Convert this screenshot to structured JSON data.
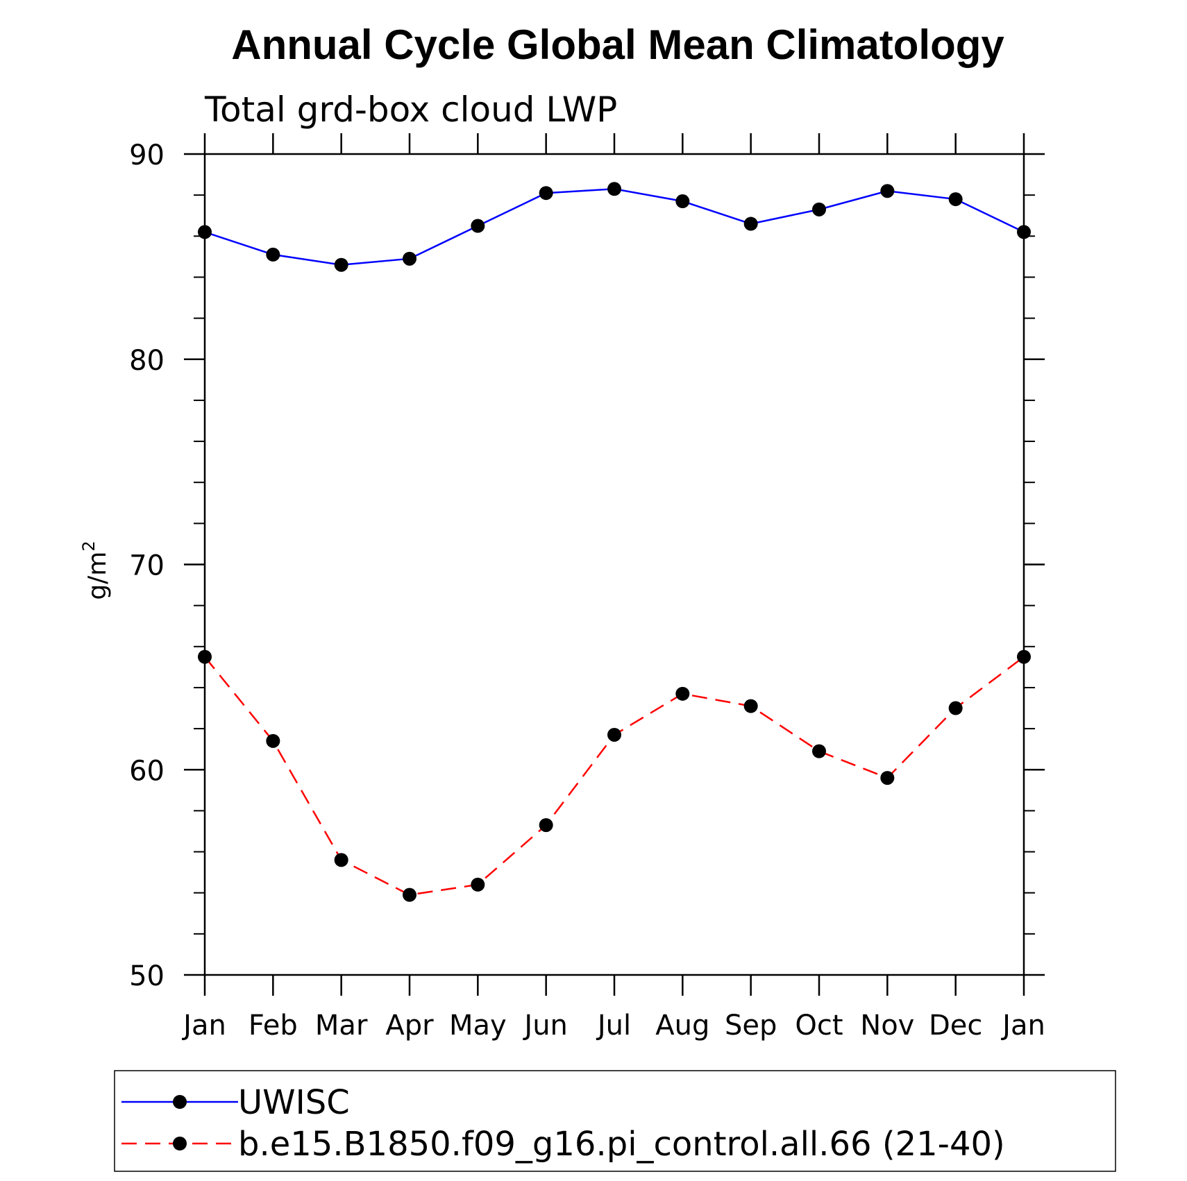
{
  "chart_data": {
    "type": "line",
    "title": "Annual Cycle Global Mean Climatology",
    "subtitle": "Total grd-box cloud LWP",
    "ylabel_base": "g/m",
    "ylabel_sup": "2",
    "categories": [
      "Jan",
      "Feb",
      "Mar",
      "Apr",
      "May",
      "Jun",
      "Jul",
      "Aug",
      "Sep",
      "Oct",
      "Nov",
      "Dec",
      "Jan"
    ],
    "ylim": [
      50,
      90
    ],
    "yticks": [
      50,
      60,
      70,
      80,
      90
    ],
    "legend_position": "bottom",
    "series": [
      {
        "name": "UWISC",
        "color": "#0000ff",
        "dash": "solid",
        "values": [
          86.2,
          85.1,
          84.6,
          84.9,
          86.5,
          88.1,
          88.3,
          87.7,
          86.6,
          87.3,
          88.2,
          87.8,
          86.2
        ]
      },
      {
        "name": "b.e15.B1850.f09_g16.pi_control.all.66 (21-40)",
        "color": "#ff0000",
        "dash": "dashed",
        "values": [
          65.5,
          61.4,
          55.6,
          53.9,
          54.4,
          57.3,
          61.7,
          63.7,
          63.1,
          60.9,
          59.6,
          63.0,
          65.5
        ]
      }
    ]
  }
}
